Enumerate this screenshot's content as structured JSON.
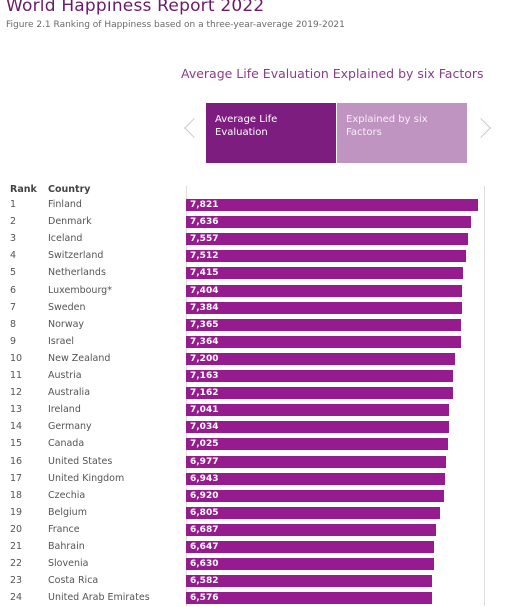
{
  "header": {
    "title": "World Happiness Report 2022",
    "subtitle": "Figure 2.1 Ranking of Happiness based on a three-year-average 2019-2021"
  },
  "chart_heading": "Average Life Evaluation Explained by six Factors",
  "tabs": [
    {
      "label": "Average Life Evaluation",
      "active": true
    },
    {
      "label": "Explained by six Factors",
      "active": false
    }
  ],
  "table": {
    "rank_header": "Rank",
    "country_header": "Country"
  },
  "colors": {
    "bar": "#961b8f",
    "tab_active": "#7d1d80",
    "tab_inactive": "#c094c1",
    "title": "#6b1a6b"
  },
  "chart_data": {
    "type": "bar",
    "orientation": "horizontal",
    "title": "Average Life Evaluation Explained by six Factors",
    "xlim": [
      0,
      7.821
    ],
    "rows": [
      {
        "rank": "1",
        "country": "Finland",
        "value": 7.821,
        "label": "7,821"
      },
      {
        "rank": "2",
        "country": "Denmark",
        "value": 7.636,
        "label": "7,636"
      },
      {
        "rank": "3",
        "country": "Iceland",
        "value": 7.557,
        "label": "7,557"
      },
      {
        "rank": "4",
        "country": "Switzerland",
        "value": 7.512,
        "label": "7,512"
      },
      {
        "rank": "5",
        "country": "Netherlands",
        "value": 7.415,
        "label": "7,415"
      },
      {
        "rank": "6",
        "country": "Luxembourg*",
        "value": 7.404,
        "label": "7,404"
      },
      {
        "rank": "7",
        "country": "Sweden",
        "value": 7.384,
        "label": "7,384"
      },
      {
        "rank": "8",
        "country": "Norway",
        "value": 7.365,
        "label": "7,365"
      },
      {
        "rank": "9",
        "country": "Israel",
        "value": 7.364,
        "label": "7,364"
      },
      {
        "rank": "10",
        "country": "New Zealand",
        "value": 7.2,
        "label": "7,200"
      },
      {
        "rank": "11",
        "country": "Austria",
        "value": 7.163,
        "label": "7,163"
      },
      {
        "rank": "12",
        "country": "Australia",
        "value": 7.162,
        "label": "7,162"
      },
      {
        "rank": "13",
        "country": "Ireland",
        "value": 7.041,
        "label": "7,041"
      },
      {
        "rank": "14",
        "country": "Germany",
        "value": 7.034,
        "label": "7,034"
      },
      {
        "rank": "15",
        "country": "Canada",
        "value": 7.025,
        "label": "7,025"
      },
      {
        "rank": "16",
        "country": "United States",
        "value": 6.977,
        "label": "6,977"
      },
      {
        "rank": "17",
        "country": "United Kingdom",
        "value": 6.943,
        "label": "6,943"
      },
      {
        "rank": "18",
        "country": "Czechia",
        "value": 6.92,
        "label": "6,920"
      },
      {
        "rank": "19",
        "country": "Belgium",
        "value": 6.805,
        "label": "6,805"
      },
      {
        "rank": "20",
        "country": "France",
        "value": 6.687,
        "label": "6,687"
      },
      {
        "rank": "21",
        "country": "Bahrain",
        "value": 6.647,
        "label": "6,647"
      },
      {
        "rank": "22",
        "country": "Slovenia",
        "value": 6.63,
        "label": "6,630"
      },
      {
        "rank": "23",
        "country": "Costa Rica",
        "value": 6.582,
        "label": "6,582"
      },
      {
        "rank": "24",
        "country": "United Arab Emirates",
        "value": 6.576,
        "label": "6,576"
      }
    ]
  }
}
